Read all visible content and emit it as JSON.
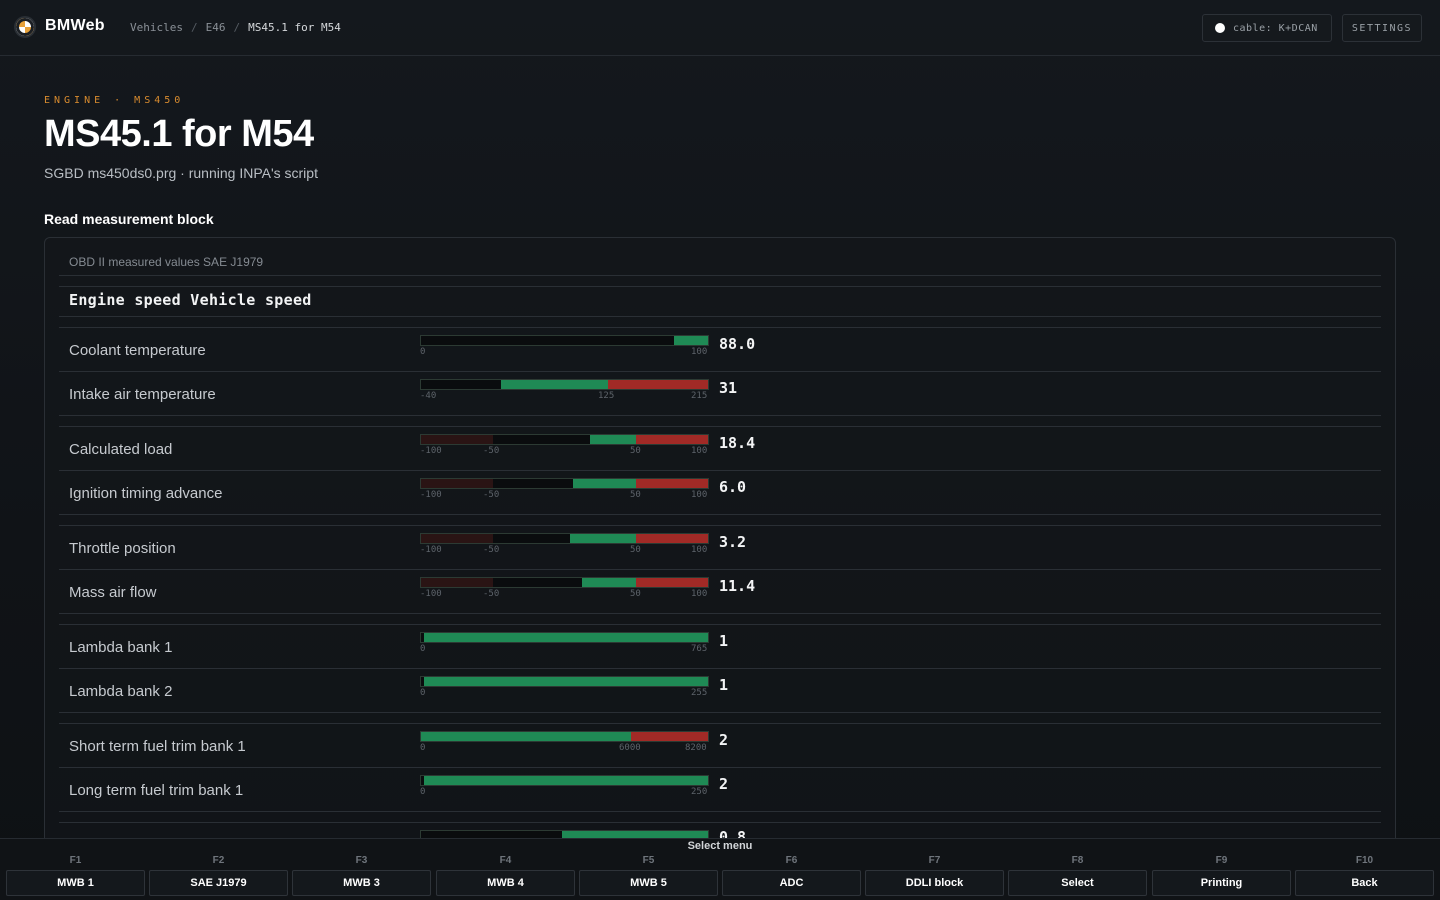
{
  "header": {
    "brand": "BMWeb",
    "breadcrumb": [
      "Vehicles",
      "E46",
      "MS45.1 for M54"
    ],
    "cable_status": "cable: K+DCAN",
    "settings_label": "SETTINGS"
  },
  "page": {
    "eyebrow": "ENGINE · MS450",
    "title": "MS45.1 for M54",
    "subtitle": "SGBD ms450ds0.prg · running INPA's script",
    "section_title": "Read measurement block"
  },
  "panel": {
    "caption": "OBD II measured values SAE J1979",
    "group_header": "Engine speed Vehicle speed",
    "rows": [
      {
        "label": "Coolant temperature",
        "value": "88.0",
        "ticks": [
          "0",
          "100"
        ],
        "fill": 0.88
      },
      {
        "label": "Intake air temperature",
        "value": "31",
        "ticks": [
          "-40",
          "125",
          "215"
        ],
        "fill": 0.28
      },
      {
        "label": "Calculated load",
        "value": "18.4",
        "ticks": [
          "-100",
          "-50",
          "50",
          "100"
        ],
        "fill": 0.59
      },
      {
        "label": "Ignition timing advance",
        "value": "6.0",
        "ticks": [
          "-100",
          "-50",
          "50",
          "100"
        ],
        "fill": 0.53
      },
      {
        "label": "Throttle position",
        "value": "3.2",
        "ticks": [
          "-100",
          "-50",
          "50",
          "100"
        ],
        "fill": 0.52
      },
      {
        "label": "Mass air flow",
        "value": "11.4",
        "ticks": [
          "-100",
          "-50",
          "50",
          "100"
        ],
        "fill": 0.56
      },
      {
        "label": "Lambda bank 1",
        "value": "1",
        "ticks": [
          "0",
          "765"
        ],
        "fill": 0.01
      },
      {
        "label": "Lambda bank 2",
        "value": "1",
        "ticks": [
          "0",
          "255"
        ],
        "fill": 0.01
      },
      {
        "label": "Short term fuel trim bank 1",
        "value": "2",
        "ticks": [
          "0",
          "6000",
          "8200"
        ],
        "fill": 0.0
      },
      {
        "label": "Long term fuel trim bank 1",
        "value": "2",
        "ticks": [
          "0",
          "250"
        ],
        "fill": 0.01
      },
      {
        "label": "",
        "value": "0.8",
        "ticks": [],
        "fill": 0.49
      }
    ]
  },
  "fkeys": {
    "caption": "Select menu",
    "keys": [
      {
        "num": "F1",
        "label": "MWB 1"
      },
      {
        "num": "F2",
        "label": "SAE J1979"
      },
      {
        "num": "F3",
        "label": "MWB 3"
      },
      {
        "num": "F4",
        "label": "MWB 4"
      },
      {
        "num": "F5",
        "label": "MWB 5"
      },
      {
        "num": "F6",
        "label": "ADC"
      },
      {
        "num": "F7",
        "label": "DDLI block"
      },
      {
        "num": "F8",
        "label": "Select"
      },
      {
        "num": "F9",
        "label": "Printing"
      },
      {
        "num": "F10",
        "label": "Back"
      }
    ]
  },
  "colors": {
    "accent": "#d98c2f",
    "ok_green": "#1f8a55",
    "warn_red": "#a12a26"
  }
}
